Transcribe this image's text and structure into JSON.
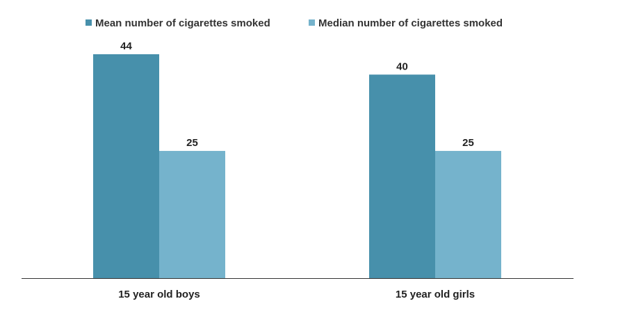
{
  "chart_data": {
    "type": "bar",
    "categories": [
      "15 year old boys",
      "15 year old girls"
    ],
    "series": [
      {
        "name": "Mean number of cigarettes smoked",
        "values": [
          44,
          40
        ],
        "color": "#4790AB"
      },
      {
        "name": "Median number of cigarettes smoked",
        "values": [
          25,
          25
        ],
        "color": "#75B3CC"
      }
    ],
    "title": "",
    "xlabel": "",
    "ylabel": "",
    "ylim": [
      0,
      44
    ],
    "grid": false,
    "legend": "top-center",
    "data_labels": true
  }
}
